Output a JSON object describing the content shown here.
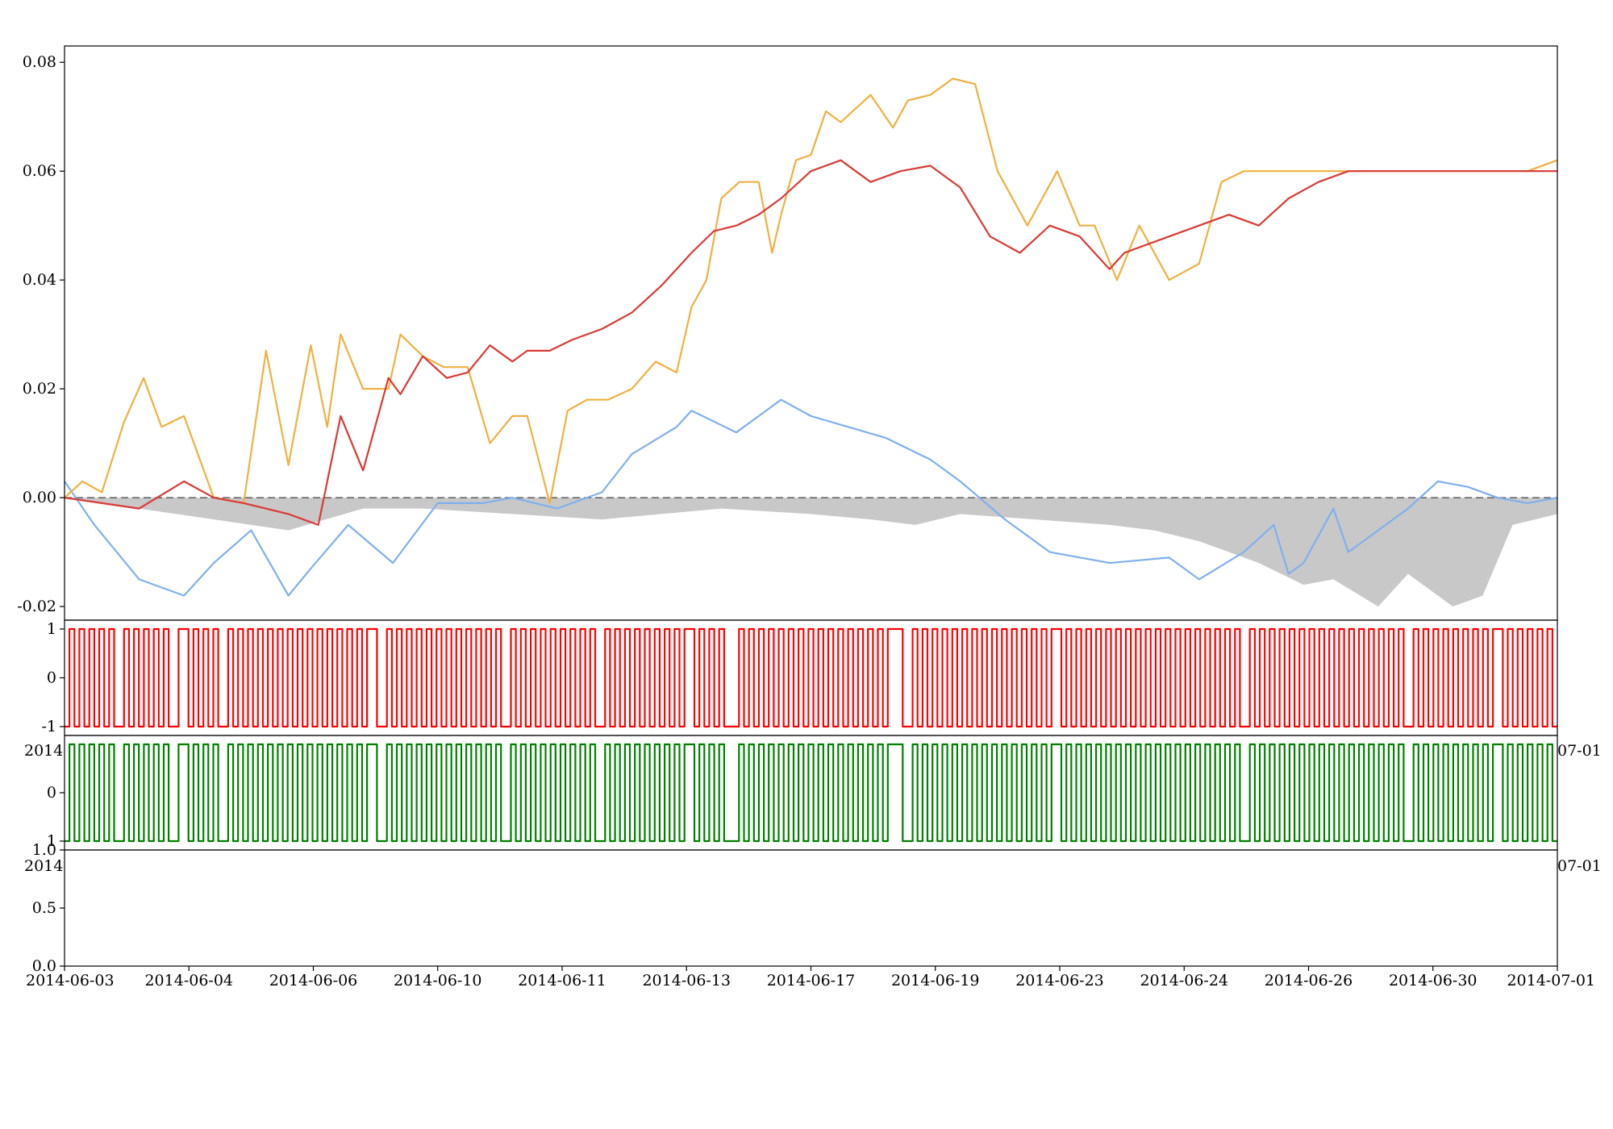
{
  "chart_data": [
    {
      "type": "line",
      "x_tick_labels": [
        "2014-06-03",
        "2014-06-04",
        "2014-06-06",
        "2014-06-10",
        "2014-06-11",
        "2014-06-13",
        "2014-06-17",
        "2014-06-19",
        "2014-06-23",
        "2014-06-24",
        "2014-06-26",
        "2014-06-30",
        "2014-07-01"
      ],
      "ylim": [
        -0.0225,
        0.083
      ],
      "y_ticks": [
        0.08,
        0.06,
        0.04,
        0.02,
        0.0,
        -0.02
      ],
      "y_tick_labels": [
        "0.08",
        "0.06",
        "0.04",
        "0.02",
        "0.00",
        "-0.02"
      ],
      "reference_line": 0.0,
      "colors": {
        "series_1": "#f0b040",
        "series_2": "#d93a35",
        "series_3": "#7fb0ee",
        "drawdown": "#c8c8c8",
        "reference": "#666666"
      },
      "series": [
        {
          "x": [
            0,
            0.012,
            0.025,
            0.04,
            0.053,
            0.065,
            0.08,
            0.1,
            0.12,
            0.135,
            0.15,
            0.165,
            0.176,
            0.185,
            0.2,
            0.217,
            0.225,
            0.24,
            0.254,
            0.27,
            0.285,
            0.3,
            0.31,
            0.325,
            0.337,
            0.35,
            0.364,
            0.38,
            0.396,
            0.41,
            0.42,
            0.43,
            0.44,
            0.452,
            0.465,
            0.474,
            0.48,
            0.49,
            0.5,
            0.51,
            0.52,
            0.54,
            0.555,
            0.565,
            0.58,
            0.595,
            0.61,
            0.625,
            0.645,
            0.665,
            0.68,
            0.69,
            0.705,
            0.72,
            0.74,
            0.76,
            0.775,
            0.79,
            0.8,
            0.81,
            0.82,
            0.83,
            0.845,
            0.86,
            0.87,
            0.882,
            0.895,
            0.91,
            0.918,
            0.93,
            0.94,
            0.95,
            0.965,
            0.98,
            1.0
          ],
          "values": [
            0.0,
            0.003,
            0.001,
            0.014,
            0.022,
            0.013,
            0.015,
            0.0,
            -0.001,
            0.027,
            0.006,
            0.028,
            0.013,
            0.03,
            0.02,
            0.02,
            0.03,
            0.026,
            0.024,
            0.024,
            0.01,
            0.015,
            0.015,
            -0.001,
            0.016,
            0.018,
            0.018,
            0.02,
            0.025,
            0.023,
            0.035,
            0.04,
            0.055,
            0.058,
            0.058,
            0.045,
            0.052,
            0.062,
            0.063,
            0.071,
            0.069,
            0.074,
            0.068,
            0.073,
            0.074,
            0.077,
            0.076,
            0.06,
            0.05,
            0.06,
            0.05,
            0.05,
            0.04,
            0.05,
            0.04,
            0.043,
            0.058,
            0.06,
            0.06,
            0.06,
            0.06,
            0.06,
            0.06,
            0.06,
            0.06,
            0.06,
            0.06,
            0.06,
            0.06,
            0.06,
            0.06,
            0.06,
            0.06,
            0.06,
            0.062
          ]
        },
        {
          "x": [
            0,
            0.05,
            0.08,
            0.1,
            0.12,
            0.15,
            0.17,
            0.185,
            0.2,
            0.217,
            0.225,
            0.24,
            0.256,
            0.27,
            0.285,
            0.3,
            0.31,
            0.325,
            0.34,
            0.36,
            0.38,
            0.4,
            0.41,
            0.42,
            0.435,
            0.45,
            0.465,
            0.48,
            0.5,
            0.52,
            0.54,
            0.56,
            0.58,
            0.6,
            0.62,
            0.64,
            0.66,
            0.68,
            0.7,
            0.71,
            0.72,
            0.74,
            0.76,
            0.78,
            0.8,
            0.82,
            0.84,
            0.86,
            0.88,
            0.9,
            0.92,
            0.94,
            0.96,
            0.98,
            1.0
          ],
          "values": [
            0.0,
            -0.002,
            0.003,
            0.0,
            -0.001,
            -0.003,
            -0.005,
            0.015,
            0.005,
            0.022,
            0.019,
            0.026,
            0.022,
            0.023,
            0.028,
            0.025,
            0.027,
            0.027,
            0.029,
            0.031,
            0.034,
            0.039,
            0.042,
            0.045,
            0.049,
            0.05,
            0.052,
            0.055,
            0.06,
            0.062,
            0.058,
            0.06,
            0.061,
            0.057,
            0.048,
            0.045,
            0.05,
            0.048,
            0.042,
            0.045,
            0.046,
            0.048,
            0.05,
            0.052,
            0.05,
            0.055,
            0.058,
            0.06,
            0.06,
            0.06,
            0.06,
            0.06,
            0.06,
            0.06,
            0.06
          ]
        },
        {
          "x": [
            0,
            0.02,
            0.05,
            0.08,
            0.1,
            0.125,
            0.15,
            0.165,
            0.19,
            0.22,
            0.25,
            0.28,
            0.3,
            0.33,
            0.36,
            0.38,
            0.41,
            0.42,
            0.45,
            0.48,
            0.5,
            0.55,
            0.58,
            0.6,
            0.63,
            0.66,
            0.7,
            0.74,
            0.76,
            0.79,
            0.81,
            0.82,
            0.83,
            0.85,
            0.86,
            0.88,
            0.9,
            0.92,
            0.94,
            0.96,
            0.98,
            1.0
          ],
          "values": [
            0.003,
            -0.005,
            -0.015,
            -0.018,
            -0.012,
            -0.006,
            -0.018,
            -0.013,
            -0.005,
            -0.012,
            -0.001,
            -0.001,
            0.0,
            -0.002,
            0.001,
            0.008,
            0.013,
            0.016,
            0.012,
            0.018,
            0.015,
            0.011,
            0.007,
            0.003,
            -0.004,
            -0.01,
            -0.012,
            -0.011,
            -0.015,
            -0.01,
            -0.005,
            -0.014,
            -0.012,
            -0.002,
            -0.01,
            -0.006,
            -0.002,
            0.003,
            0.002,
            0.0,
            -0.001,
            0.0
          ]
        },
        {
          "x": [
            0,
            0.1,
            0.15,
            0.2,
            0.24,
            0.3,
            0.36,
            0.44,
            0.5,
            0.54,
            0.57,
            0.6,
            0.65,
            0.7,
            0.73,
            0.76,
            0.8,
            0.83,
            0.85,
            0.88,
            0.9,
            0.93,
            0.95,
            0.97,
            1.0
          ],
          "values": [
            0.0,
            -0.004,
            -0.006,
            -0.002,
            -0.002,
            -0.003,
            -0.004,
            -0.002,
            -0.003,
            -0.004,
            -0.005,
            -0.003,
            -0.004,
            -0.005,
            -0.006,
            -0.008,
            -0.012,
            -0.016,
            -0.015,
            -0.02,
            -0.014,
            -0.02,
            -0.018,
            -0.005,
            -0.003
          ]
        }
      ]
    },
    {
      "type": "line",
      "ylim": [
        -1.1,
        1.1
      ],
      "y_tick_labels": [
        "1",
        "0",
        "-1"
      ],
      "x_tick_labels": [
        "2014",
        "07-01"
      ],
      "color": "#ff0000",
      "values": [
        -1,
        1,
        -1,
        1,
        -1,
        1,
        -1,
        1,
        -1,
        1,
        -1,
        -1,
        1,
        -1,
        1,
        -1,
        1,
        -1,
        1,
        -1,
        1,
        -1,
        -1,
        1,
        1,
        -1,
        1,
        -1,
        1,
        -1,
        1,
        -1,
        -1,
        1,
        -1,
        1,
        -1,
        1,
        -1,
        1,
        -1,
        1,
        -1,
        1,
        -1,
        1,
        -1,
        1,
        -1,
        1,
        -1,
        1,
        -1,
        1,
        -1,
        1,
        -1,
        1,
        -1,
        1,
        -1,
        1,
        1,
        -1,
        -1,
        1,
        -1,
        1,
        -1,
        1,
        -1,
        1,
        -1,
        1,
        -1,
        1,
        -1,
        1,
        -1,
        1,
        -1,
        1,
        -1,
        1,
        -1,
        1,
        -1,
        1,
        -1,
        -1,
        1,
        -1,
        1,
        -1,
        1,
        -1,
        1,
        -1,
        1,
        -1,
        1,
        -1,
        1,
        -1,
        1,
        -1,
        1,
        -1,
        -1,
        1,
        -1,
        1,
        -1,
        1,
        -1,
        1,
        -1,
        1,
        -1,
        1,
        -1,
        1,
        -1,
        1,
        -1,
        1,
        1,
        -1,
        1,
        -1,
        1,
        -1,
        1,
        -1,
        -1,
        -1,
        1,
        -1,
        1,
        -1,
        1,
        -1,
        1,
        -1,
        1,
        -1,
        1,
        -1,
        1,
        -1,
        1,
        -1,
        1,
        -1,
        1,
        -1,
        1,
        -1,
        1,
        -1,
        1,
        -1,
        1,
        -1,
        1,
        -1,
        1,
        1,
        1,
        -1,
        -1,
        1,
        -1,
        1,
        -1,
        1,
        -1,
        1,
        -1,
        1,
        -1,
        1,
        -1,
        1,
        -1,
        1,
        -1,
        1,
        -1,
        1,
        -1,
        1,
        -1,
        1,
        -1,
        1,
        -1,
        1,
        -1,
        1,
        1,
        -1,
        1,
        -1,
        1,
        -1,
        1,
        -1,
        1,
        -1,
        1,
        -1,
        1,
        -1,
        1,
        -1,
        1,
        -1,
        1,
        -1,
        1,
        -1,
        1,
        -1,
        1,
        -1,
        1,
        -1,
        1,
        -1,
        1,
        -1,
        1,
        -1,
        1,
        -1,
        1,
        -1,
        -1,
        1,
        -1,
        1,
        -1,
        1,
        -1,
        1,
        -1,
        1,
        -1,
        1,
        -1,
        1,
        -1,
        1,
        -1,
        1,
        -1,
        1,
        -1,
        1,
        -1,
        1,
        -1,
        1,
        -1,
        1,
        -1,
        1,
        -1,
        1,
        -1,
        -1,
        1,
        -1,
        1,
        -1,
        1,
        -1,
        1,
        -1,
        1,
        -1,
        1,
        -1,
        1,
        -1,
        1,
        -1,
        1,
        1,
        -1,
        1,
        -1,
        1,
        -1,
        1,
        -1,
        1,
        -1,
        1,
        -1
      ]
    },
    {
      "type": "line",
      "ylim": [
        -1.1,
        1.1
      ],
      "y_tick_labels": [
        "0",
        "1",
        "1.0"
      ],
      "x_tick_labels": [
        "2014",
        "07-01"
      ],
      "color": "#008000",
      "values": [
        -1,
        1,
        -1,
        1,
        -1,
        1,
        -1,
        1,
        -1,
        1,
        -1,
        -1,
        1,
        -1,
        1,
        -1,
        1,
        -1,
        1,
        -1,
        1,
        -1,
        -1,
        1,
        1,
        -1,
        1,
        -1,
        1,
        -1,
        1,
        -1,
        -1,
        1,
        -1,
        1,
        -1,
        1,
        -1,
        1,
        -1,
        1,
        -1,
        1,
        -1,
        1,
        -1,
        1,
        -1,
        1,
        -1,
        1,
        -1,
        1,
        -1,
        1,
        -1,
        1,
        -1,
        1,
        -1,
        1,
        1,
        -1,
        -1,
        1,
        -1,
        1,
        -1,
        1,
        -1,
        1,
        -1,
        1,
        -1,
        1,
        -1,
        1,
        -1,
        1,
        -1,
        1,
        -1,
        1,
        -1,
        1,
        -1,
        1,
        -1,
        -1,
        1,
        -1,
        1,
        -1,
        1,
        -1,
        1,
        -1,
        1,
        -1,
        1,
        -1,
        1,
        -1,
        1,
        -1,
        1,
        -1,
        -1,
        1,
        -1,
        1,
        -1,
        1,
        -1,
        1,
        -1,
        1,
        -1,
        1,
        -1,
        1,
        -1,
        1,
        -1,
        1,
        1,
        -1,
        1,
        -1,
        1,
        -1,
        1,
        -1,
        -1,
        -1,
        1,
        -1,
        1,
        -1,
        1,
        -1,
        1,
        -1,
        1,
        -1,
        1,
        -1,
        1,
        -1,
        1,
        -1,
        1,
        -1,
        1,
        -1,
        1,
        -1,
        1,
        -1,
        1,
        -1,
        1,
        -1,
        1,
        -1,
        1,
        1,
        1,
        -1,
        -1,
        1,
        -1,
        1,
        -1,
        1,
        -1,
        1,
        -1,
        1,
        -1,
        1,
        -1,
        1,
        -1,
        1,
        -1,
        1,
        -1,
        1,
        -1,
        1,
        -1,
        1,
        -1,
        1,
        -1,
        1,
        -1,
        1,
        1,
        -1,
        1,
        -1,
        1,
        -1,
        1,
        -1,
        1,
        -1,
        1,
        -1,
        1,
        -1,
        1,
        -1,
        1,
        -1,
        1,
        -1,
        1,
        -1,
        1,
        -1,
        1,
        -1,
        1,
        -1,
        1,
        -1,
        1,
        -1,
        1,
        -1,
        1,
        -1,
        1,
        -1,
        -1,
        1,
        -1,
        1,
        -1,
        1,
        -1,
        1,
        -1,
        1,
        -1,
        1,
        -1,
        1,
        -1,
        1,
        -1,
        1,
        -1,
        1,
        -1,
        1,
        -1,
        1,
        -1,
        1,
        -1,
        1,
        -1,
        1,
        -1,
        1,
        -1,
        -1,
        1,
        -1,
        1,
        -1,
        1,
        -1,
        1,
        -1,
        1,
        -1,
        1,
        -1,
        1,
        -1,
        1,
        -1,
        1,
        1,
        -1,
        1,
        -1,
        1,
        -1,
        1,
        -1,
        1,
        -1,
        1,
        -1
      ]
    },
    {
      "type": "line",
      "ylim": [
        0,
        1
      ],
      "y_tick_labels": [
        "0.5",
        "0.0"
      ],
      "x_tick_labels": [
        "2014-06-03",
        "2014-06-04",
        "2014-06-06",
        "2014-06-10",
        "2014-06-11",
        "2014-06-13",
        "2014-06-17",
        "2014-06-19",
        "2014-06-23",
        "2014-06-24",
        "2014-06-26",
        "2014-06-30",
        "2014-07-01"
      ],
      "series": []
    }
  ]
}
